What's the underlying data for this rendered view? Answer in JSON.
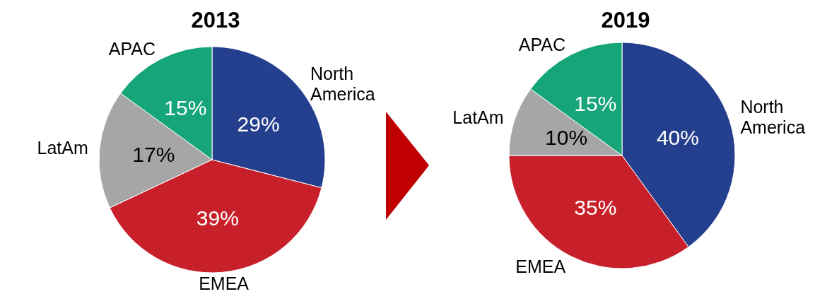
{
  "chart_data": [
    {
      "type": "pie",
      "title": "2013",
      "categories": [
        "North America",
        "EMEA",
        "LatAm",
        "APAC"
      ],
      "values": [
        29,
        39,
        17,
        15
      ],
      "value_labels": [
        "29%",
        "39%",
        "17%",
        "15%"
      ],
      "colors": [
        "#253f8f",
        "#c8202a",
        "#a6a6a6",
        "#15a578"
      ],
      "legend": false
    },
    {
      "type": "pie",
      "title": "2019",
      "categories": [
        "North America",
        "EMEA",
        "LatAm",
        "APAC"
      ],
      "values": [
        40,
        35,
        10,
        15
      ],
      "value_labels": [
        "40%",
        "35%",
        "10%",
        "15%"
      ],
      "colors": [
        "#253f8f",
        "#c8202a",
        "#a6a6a6",
        "#15a578"
      ],
      "legend": false
    }
  ]
}
